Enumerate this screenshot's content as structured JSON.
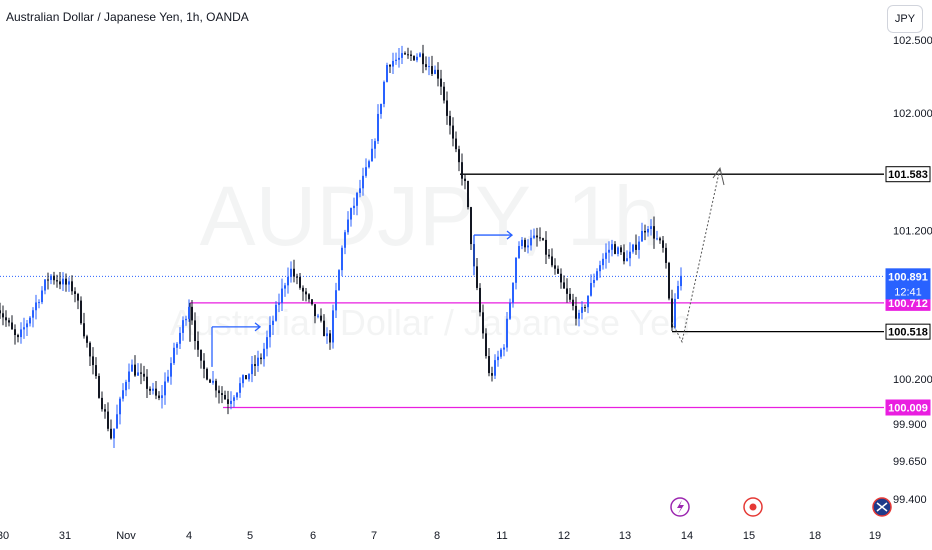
{
  "header": {
    "title": "Australian Dollar / Japanese Yen, 1h, OANDA",
    "currency_button": "JPY"
  },
  "watermark": {
    "symbol": "AUDJPY, 1h",
    "name": "Australian Dollar / Japanese Yen"
  },
  "colors": {
    "up": "#2962ff",
    "down": "#131722",
    "support": "#000000",
    "zone": "#e91ee0",
    "price_line": "#2962ff"
  },
  "chart_data": {
    "type": "candlestick",
    "title": "Australian Dollar / Japanese Yen, 1h, OANDA",
    "y_axis": {
      "ticks": [
        "102.500",
        "102.000",
        "101.200",
        "100.200",
        "99.900",
        "99.650",
        "99.400"
      ],
      "scale": "log"
    },
    "x_axis": {
      "ticks": [
        "30",
        "31",
        "Nov",
        "4",
        "5",
        "6",
        "7",
        "8",
        "11",
        "12",
        "13",
        "14",
        "15",
        "18",
        "19"
      ]
    },
    "current_price": {
      "value": "100.891",
      "countdown": "12:41"
    },
    "levels": [
      {
        "value": "101.583",
        "style": "resistance"
      },
      {
        "value": "100.712",
        "style": "zone"
      },
      {
        "value": "100.518",
        "style": "support"
      },
      {
        "value": "100.009",
        "style": "zone"
      }
    ],
    "series_path": [
      [
        "30",
        100.7
      ],
      [
        "30",
        100.45
      ],
      [
        "31",
        100.95
      ],
      [
        "31",
        100.35
      ],
      [
        "31",
        99.75
      ],
      [
        "Nov",
        100.3
      ],
      [
        "Nov",
        100.05
      ],
      [
        "4",
        100.75
      ],
      [
        "4",
        100.2
      ],
      [
        "4",
        100.1
      ],
      [
        "5",
        100.45
      ],
      [
        "5",
        100.95
      ],
      [
        "6",
        100.4
      ],
      [
        "6",
        101.15
      ],
      [
        "7",
        101.7
      ],
      [
        "7",
        102.35
      ],
      [
        "8",
        102.3
      ],
      [
        "8",
        101.7
      ],
      [
        "11",
        100.2
      ],
      [
        "11",
        101.1
      ],
      [
        "11",
        101.15
      ],
      [
        "12",
        100.6
      ],
      [
        "12",
        101.1
      ],
      [
        "13",
        101.2
      ],
      [
        "13",
        100.55
      ],
      [
        "13",
        100.891
      ]
    ],
    "projection": {
      "from": "100.518",
      "to": "101.583",
      "style": "dotted arrow"
    },
    "annotations": [
      "arrow near 4–5",
      "arrow near 11"
    ]
  }
}
